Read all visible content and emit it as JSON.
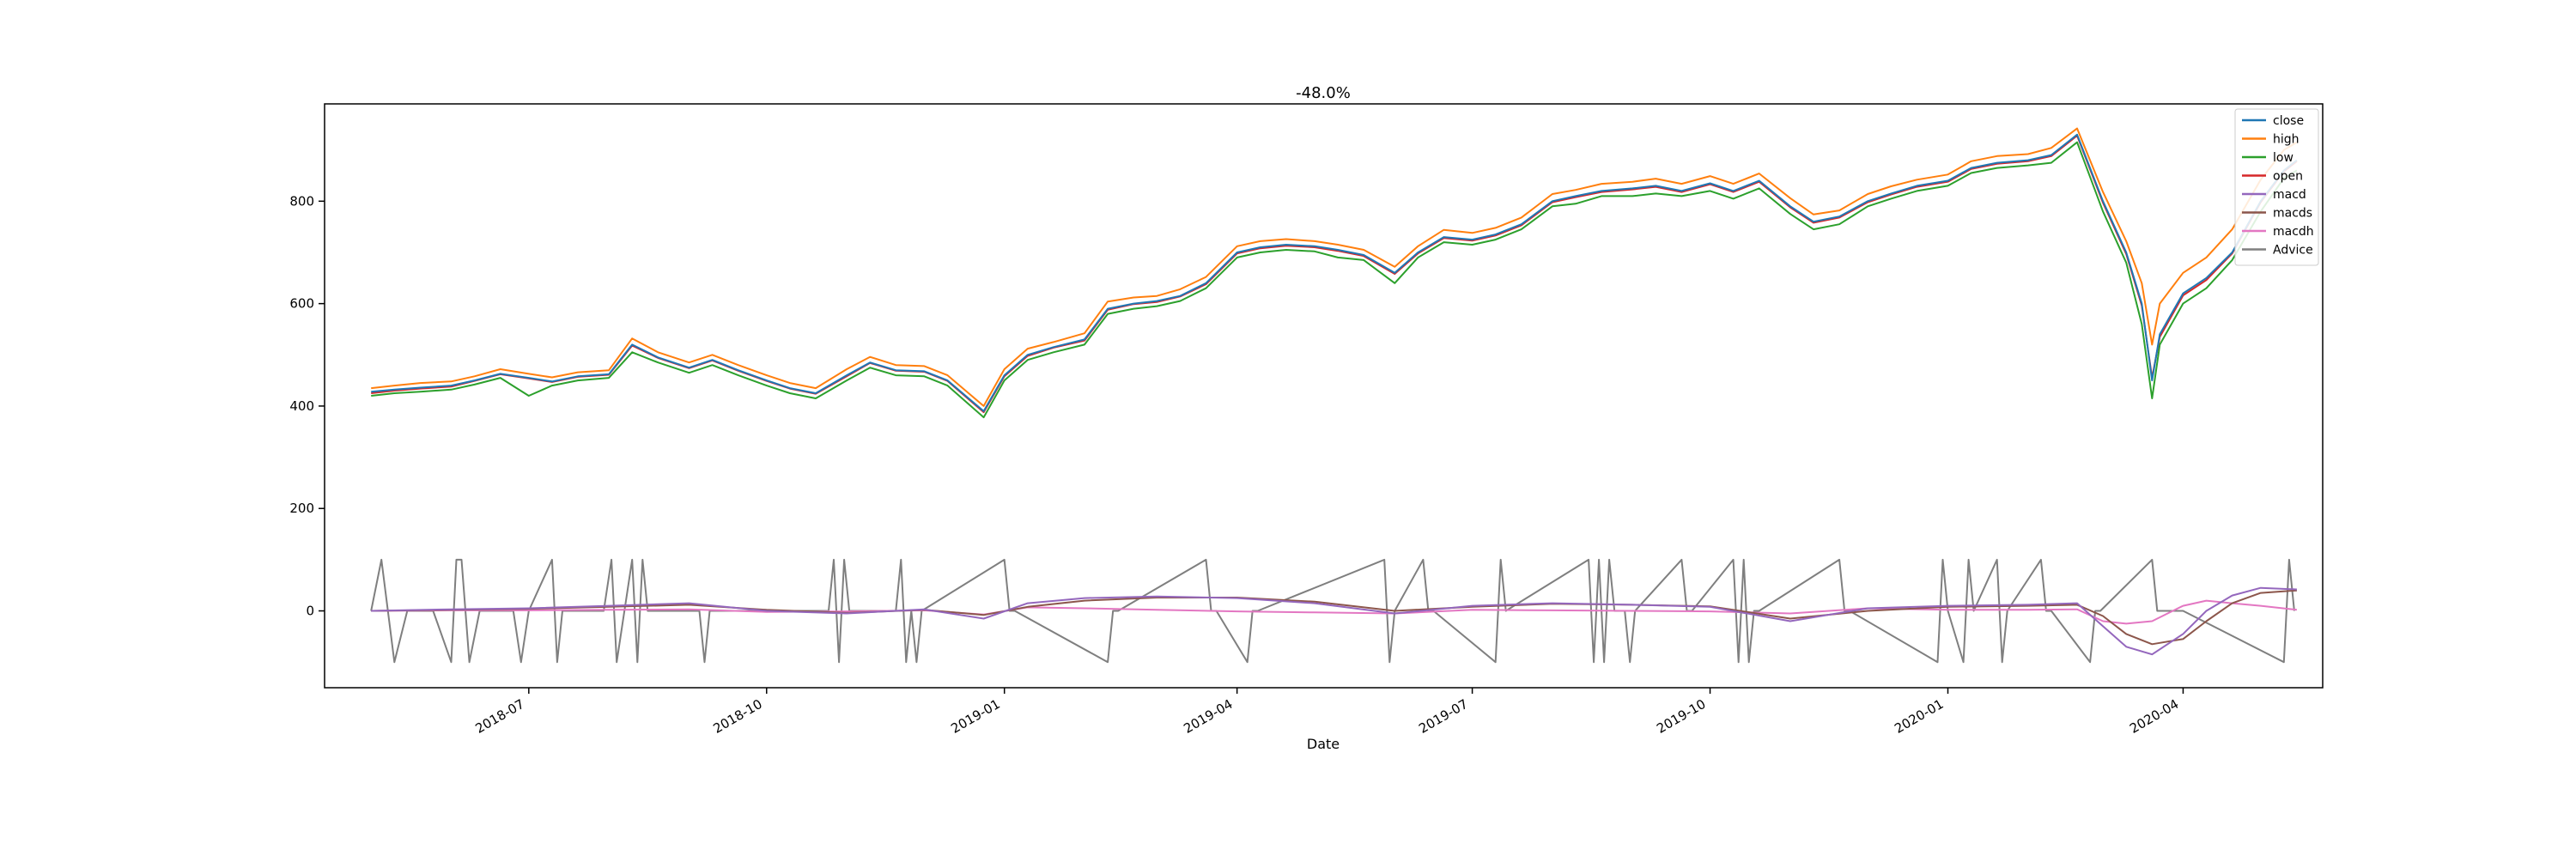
{
  "chart_data": {
    "type": "line",
    "title": "-48.0%",
    "xlabel": "Date",
    "ylabel": "",
    "x_range": [
      "2018-04-13",
      "2020-05-25"
    ],
    "ylim": [
      -150,
      990
    ],
    "yticks": [
      0,
      200,
      400,
      600,
      800
    ],
    "xticks": [
      {
        "date": "2018-07-01",
        "label": "2018-07"
      },
      {
        "date": "2018-10-01",
        "label": "2018-10"
      },
      {
        "date": "2019-01-01",
        "label": "2019-01"
      },
      {
        "date": "2019-04-01",
        "label": "2019-04"
      },
      {
        "date": "2019-07-01",
        "label": "2019-07"
      },
      {
        "date": "2019-10-01",
        "label": "2019-10"
      },
      {
        "date": "2020-01-01",
        "label": "2020-01"
      },
      {
        "date": "2020-04-01",
        "label": "2020-04"
      }
    ],
    "grid": false,
    "legend_position": "top-right",
    "colors": {
      "close": "#1f77b4",
      "high": "#ff7f0e",
      "low": "#2ca02c",
      "open": "#d62728",
      "macd": "#9467bd",
      "macds": "#8c564b",
      "macdh": "#e377c2",
      "Advice": "#7f7f7f"
    },
    "price_series": {
      "x": [
        "2018-05-01",
        "2018-05-10",
        "2018-05-20",
        "2018-06-01",
        "2018-06-10",
        "2018-06-20",
        "2018-07-01",
        "2018-07-10",
        "2018-07-20",
        "2018-08-01",
        "2018-08-10",
        "2018-08-20",
        "2018-09-01",
        "2018-09-10",
        "2018-09-20",
        "2018-10-01",
        "2018-10-10",
        "2018-10-20",
        "2018-11-01",
        "2018-11-10",
        "2018-11-20",
        "2018-12-01",
        "2018-12-10",
        "2018-12-24",
        "2019-01-01",
        "2019-01-10",
        "2019-01-20",
        "2019-02-01",
        "2019-02-10",
        "2019-02-20",
        "2019-03-01",
        "2019-03-10",
        "2019-03-20",
        "2019-04-01",
        "2019-04-10",
        "2019-04-20",
        "2019-05-01",
        "2019-05-10",
        "2019-05-20",
        "2019-06-01",
        "2019-06-10",
        "2019-06-20",
        "2019-07-01",
        "2019-07-10",
        "2019-07-20",
        "2019-08-01",
        "2019-08-10",
        "2019-08-20",
        "2019-09-01",
        "2019-09-10",
        "2019-09-20",
        "2019-10-01",
        "2019-10-10",
        "2019-10-20",
        "2019-11-01",
        "2019-11-10",
        "2019-11-20",
        "2019-12-01",
        "2019-12-10",
        "2019-12-20",
        "2020-01-01",
        "2020-01-10",
        "2020-01-20",
        "2020-02-01",
        "2020-02-10",
        "2020-02-20",
        "2020-03-01",
        "2020-03-10",
        "2020-03-16",
        "2020-03-20",
        "2020-03-23",
        "2020-04-01",
        "2020-04-10",
        "2020-04-20",
        "2020-05-01",
        "2020-05-10",
        "2020-05-15"
      ],
      "close": [
        428,
        432,
        436,
        440,
        450,
        463,
        455,
        448,
        458,
        462,
        520,
        495,
        475,
        490,
        470,
        450,
        435,
        425,
        460,
        485,
        470,
        468,
        450,
        390,
        460,
        500,
        515,
        530,
        590,
        600,
        605,
        615,
        640,
        700,
        710,
        715,
        712,
        705,
        695,
        660,
        700,
        730,
        725,
        735,
        755,
        800,
        810,
        820,
        825,
        830,
        820,
        835,
        820,
        840,
        790,
        760,
        770,
        800,
        815,
        830,
        840,
        865,
        875,
        880,
        890,
        930,
        800,
        700,
        600,
        450,
        540,
        620,
        650,
        700,
        800,
        860,
        880
      ],
      "high": [
        435,
        440,
        445,
        448,
        458,
        472,
        463,
        456,
        466,
        470,
        532,
        505,
        485,
        500,
        480,
        460,
        445,
        435,
        472,
        496,
        480,
        478,
        460,
        400,
        472,
        512,
        525,
        542,
        604,
        612,
        615,
        628,
        652,
        712,
        722,
        726,
        722,
        715,
        705,
        672,
        712,
        744,
        738,
        748,
        768,
        814,
        822,
        834,
        838,
        844,
        834,
        849,
        834,
        854,
        806,
        774,
        782,
        814,
        829,
        842,
        852,
        878,
        888,
        892,
        904,
        942,
        818,
        722,
        640,
        520,
        600,
        660,
        690,
        745,
        842,
        900,
        915
      ],
      "low": [
        420,
        425,
        428,
        432,
        442,
        455,
        420,
        440,
        450,
        455,
        505,
        485,
        465,
        480,
        460,
        440,
        425,
        415,
        450,
        475,
        460,
        458,
        440,
        378,
        450,
        490,
        505,
        520,
        580,
        590,
        595,
        605,
        630,
        690,
        700,
        705,
        702,
        690,
        685,
        640,
        690,
        720,
        715,
        725,
        745,
        790,
        795,
        810,
        810,
        815,
        810,
        820,
        805,
        825,
        775,
        745,
        755,
        790,
        805,
        820,
        830,
        855,
        865,
        870,
        875,
        915,
        780,
        680,
        560,
        415,
        520,
        600,
        630,
        685,
        780,
        845,
        860
      ],
      "open": [
        425,
        430,
        434,
        438,
        449,
        462,
        454,
        447,
        457,
        461,
        518,
        494,
        474,
        489,
        469,
        449,
        434,
        424,
        458,
        484,
        469,
        467,
        449,
        388,
        458,
        498,
        514,
        528,
        588,
        599,
        603,
        614,
        638,
        698,
        708,
        713,
        710,
        703,
        693,
        658,
        698,
        728,
        723,
        733,
        753,
        798,
        808,
        818,
        823,
        828,
        818,
        833,
        818,
        838,
        788,
        758,
        768,
        798,
        813,
        828,
        838,
        863,
        873,
        878,
        888,
        928,
        797,
        697,
        596,
        455,
        535,
        616,
        646,
        698,
        798,
        858,
        878
      ]
    },
    "macd_series": {
      "x": [
        "2018-05-01",
        "2018-06-01",
        "2018-07-01",
        "2018-08-01",
        "2018-09-01",
        "2018-10-01",
        "2018-11-01",
        "2018-12-01",
        "2018-12-24",
        "2019-01-10",
        "2019-02-01",
        "2019-03-01",
        "2019-04-01",
        "2019-05-01",
        "2019-06-01",
        "2019-07-01",
        "2019-08-01",
        "2019-09-01",
        "2019-10-01",
        "2019-11-01",
        "2019-12-01",
        "2020-01-01",
        "2020-02-01",
        "2020-02-20",
        "2020-03-01",
        "2020-03-10",
        "2020-03-20",
        "2020-04-01",
        "2020-04-10",
        "2020-04-20",
        "2020-05-01",
        "2020-05-15"
      ],
      "macd": [
        0,
        3,
        5,
        10,
        15,
        0,
        -5,
        3,
        -15,
        15,
        25,
        28,
        25,
        15,
        -5,
        10,
        15,
        12,
        8,
        -20,
        5,
        10,
        12,
        15,
        -30,
        -70,
        -85,
        -45,
        0,
        30,
        45,
        42
      ],
      "macds": [
        0,
        2,
        4,
        8,
        12,
        2,
        -4,
        2,
        -8,
        8,
        20,
        26,
        26,
        18,
        0,
        8,
        14,
        12,
        9,
        -15,
        0,
        8,
        10,
        12,
        -10,
        -45,
        -65,
        -55,
        -20,
        15,
        35,
        40
      ],
      "macdh": [
        0,
        1,
        1,
        2,
        3,
        -2,
        -1,
        1,
        -7,
        7,
        5,
        2,
        -1,
        -3,
        -5,
        2,
        1,
        0,
        -1,
        -5,
        5,
        2,
        2,
        3,
        -20,
        -25,
        -20,
        10,
        20,
        15,
        10,
        2
      ]
    },
    "advice": {
      "x": [
        "2018-05-01",
        "2018-05-05",
        "2018-05-10",
        "2018-05-15",
        "2018-05-25",
        "2018-06-01",
        "2018-06-03",
        "2018-06-05",
        "2018-06-08",
        "2018-06-12",
        "2018-06-25",
        "2018-06-28",
        "2018-07-01",
        "2018-07-10",
        "2018-07-12",
        "2018-07-14",
        "2018-07-30",
        "2018-08-02",
        "2018-08-04",
        "2018-08-10",
        "2018-08-12",
        "2018-08-14",
        "2018-08-16",
        "2018-08-18",
        "2018-08-20",
        "2018-09-05",
        "2018-09-07",
        "2018-09-09",
        "2018-10-25",
        "2018-10-27",
        "2018-10-29",
        "2018-10-31",
        "2018-11-02",
        "2018-11-20",
        "2018-11-22",
        "2018-11-24",
        "2018-11-26",
        "2018-11-28",
        "2018-11-30",
        "2019-01-01",
        "2019-01-03",
        "2019-01-05",
        "2019-02-10",
        "2019-02-12",
        "2019-02-14",
        "2019-03-20",
        "2019-03-22",
        "2019-03-24",
        "2019-04-05",
        "2019-04-07",
        "2019-04-09",
        "2019-05-28",
        "2019-05-30",
        "2019-06-01",
        "2019-06-12",
        "2019-06-14",
        "2019-06-16",
        "2019-07-10",
        "2019-07-12",
        "2019-07-14",
        "2019-08-15",
        "2019-08-17",
        "2019-08-19",
        "2019-08-21",
        "2019-08-23",
        "2019-08-25",
        "2019-08-29",
        "2019-08-31",
        "2019-09-02",
        "2019-09-20",
        "2019-09-22",
        "2019-09-24",
        "2019-10-10",
        "2019-10-12",
        "2019-10-14",
        "2019-10-16",
        "2019-10-18",
        "2019-10-20",
        "2019-11-20",
        "2019-11-22",
        "2019-11-24",
        "2019-12-28",
        "2019-12-30",
        "2020-01-01",
        "2020-01-07",
        "2020-01-09",
        "2020-01-11",
        "2020-01-20",
        "2020-01-22",
        "2020-01-24",
        "2020-02-06",
        "2020-02-08",
        "2020-02-10",
        "2020-02-25",
        "2020-02-27",
        "2020-02-29",
        "2020-03-20",
        "2020-03-22",
        "2020-03-24",
        "2020-04-01",
        "2020-05-10",
        "2020-05-12",
        "2020-05-14"
      ],
      "values": [
        0,
        100,
        -100,
        0,
        0,
        -100,
        100,
        100,
        -100,
        0,
        0,
        -100,
        0,
        100,
        -100,
        0,
        0,
        100,
        -100,
        100,
        -100,
        100,
        0,
        0,
        0,
        0,
        -100,
        0,
        0,
        100,
        -100,
        100,
        0,
        0,
        100,
        -100,
        0,
        -100,
        0,
        100,
        0,
        0,
        -100,
        0,
        0,
        100,
        0,
        0,
        -100,
        0,
        0,
        100,
        -100,
        0,
        100,
        0,
        0,
        -100,
        100,
        0,
        100,
        -100,
        100,
        -100,
        100,
        0,
        0,
        -100,
        0,
        100,
        0,
        0,
        100,
        -100,
        100,
        -100,
        0,
        0,
        100,
        0,
        0,
        -100,
        100,
        0,
        -100,
        100,
        0,
        100,
        -100,
        0,
        100,
        0,
        0,
        -100,
        0,
        0,
        100,
        0,
        0,
        0,
        -100,
        100,
        0
      ]
    },
    "legend": [
      "close",
      "high",
      "low",
      "open",
      "macd",
      "macds",
      "macdh",
      "Advice"
    ]
  }
}
